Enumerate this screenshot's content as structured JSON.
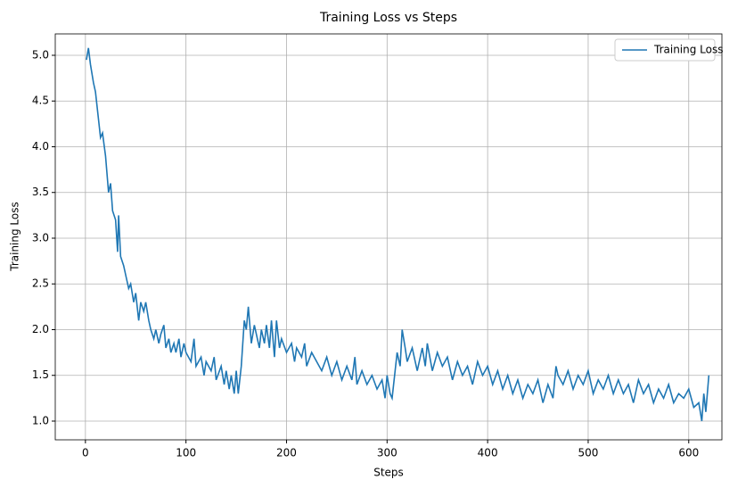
{
  "chart_data": {
    "type": "line",
    "title": "Training Loss vs Steps",
    "xlabel": "Steps",
    "ylabel": "Training Loss",
    "xlim": [
      -30,
      633
    ],
    "ylim": [
      0.795,
      5.234
    ],
    "xticks": [
      0,
      100,
      200,
      300,
      400,
      500,
      600
    ],
    "yticks": [
      {
        "value": 1.0,
        "label": "1.0"
      },
      1.5,
      {
        "value": 2.0,
        "label": "2.0"
      },
      2.5,
      {
        "value": 3.0,
        "label": "3.0"
      },
      3.5,
      {
        "value": 4.0,
        "label": "4.0"
      },
      4.5,
      {
        "value": 5.0,
        "label": "5.0"
      }
    ],
    "grid": true,
    "legend": "upper right",
    "x": [
      1,
      3,
      5,
      8,
      10,
      12,
      15,
      17,
      20,
      23,
      25,
      27,
      30,
      32,
      33,
      35,
      38,
      40,
      43,
      45,
      48,
      50,
      53,
      55,
      58,
      60,
      63,
      65,
      68,
      70,
      73,
      75,
      78,
      80,
      83,
      85,
      88,
      90,
      93,
      95,
      98,
      100,
      105,
      108,
      110,
      115,
      118,
      120,
      125,
      128,
      130,
      135,
      138,
      140,
      143,
      145,
      148,
      150,
      152,
      155,
      158,
      160,
      162,
      165,
      168,
      170,
      173,
      175,
      178,
      180,
      183,
      185,
      188,
      190,
      193,
      195,
      200,
      205,
      208,
      210,
      215,
      218,
      220,
      225,
      230,
      235,
      240,
      245,
      250,
      255,
      260,
      265,
      268,
      270,
      275,
      280,
      285,
      290,
      295,
      298,
      300,
      303,
      305,
      308,
      310,
      313,
      315,
      318,
      320,
      325,
      330,
      335,
      338,
      340,
      345,
      350,
      355,
      360,
      365,
      370,
      375,
      380,
      385,
      390,
      395,
      400,
      405,
      410,
      415,
      420,
      425,
      430,
      435,
      440,
      445,
      450,
      455,
      460,
      465,
      468,
      470,
      475,
      480,
      485,
      490,
      495,
      500,
      505,
      510,
      515,
      520,
      525,
      530,
      535,
      540,
      545,
      550,
      555,
      560,
      565,
      570,
      575,
      580,
      585,
      590,
      595,
      600,
      605,
      610,
      613,
      615,
      617,
      620
    ],
    "series": [
      {
        "name": "Training Loss",
        "color": "#1f77b4",
        "values": [
          4.95,
          5.08,
          4.9,
          4.7,
          4.6,
          4.4,
          4.1,
          4.15,
          3.9,
          3.5,
          3.6,
          3.3,
          3.2,
          2.85,
          3.25,
          2.8,
          2.7,
          2.6,
          2.45,
          2.5,
          2.3,
          2.4,
          2.1,
          2.3,
          2.2,
          2.3,
          2.1,
          2.0,
          1.9,
          2.0,
          1.85,
          1.95,
          2.05,
          1.8,
          1.9,
          1.75,
          1.85,
          1.75,
          1.9,
          1.7,
          1.85,
          1.75,
          1.65,
          1.9,
          1.6,
          1.7,
          1.5,
          1.65,
          1.55,
          1.7,
          1.45,
          1.6,
          1.4,
          1.55,
          1.35,
          1.5,
          1.3,
          1.55,
          1.3,
          1.6,
          2.1,
          2.0,
          2.25,
          1.85,
          2.05,
          1.95,
          1.8,
          2.0,
          1.85,
          2.05,
          1.8,
          2.1,
          1.7,
          2.1,
          1.8,
          1.9,
          1.75,
          1.85,
          1.65,
          1.8,
          1.7,
          1.85,
          1.6,
          1.75,
          1.65,
          1.55,
          1.7,
          1.5,
          1.65,
          1.45,
          1.6,
          1.45,
          1.7,
          1.4,
          1.55,
          1.4,
          1.5,
          1.35,
          1.45,
          1.25,
          1.5,
          1.3,
          1.25,
          1.55,
          1.75,
          1.6,
          2.0,
          1.8,
          1.65,
          1.8,
          1.55,
          1.8,
          1.6,
          1.85,
          1.55,
          1.75,
          1.6,
          1.7,
          1.45,
          1.65,
          1.5,
          1.6,
          1.4,
          1.65,
          1.5,
          1.6,
          1.4,
          1.55,
          1.35,
          1.5,
          1.3,
          1.45,
          1.25,
          1.4,
          1.3,
          1.45,
          1.2,
          1.4,
          1.25,
          1.6,
          1.5,
          1.4,
          1.55,
          1.35,
          1.5,
          1.4,
          1.55,
          1.3,
          1.45,
          1.35,
          1.5,
          1.3,
          1.45,
          1.3,
          1.4,
          1.2,
          1.45,
          1.3,
          1.4,
          1.2,
          1.35,
          1.25,
          1.4,
          1.2,
          1.3,
          1.25,
          1.35,
          1.15,
          1.2,
          1.0,
          1.3,
          1.1,
          1.5
        ]
      }
    ]
  }
}
